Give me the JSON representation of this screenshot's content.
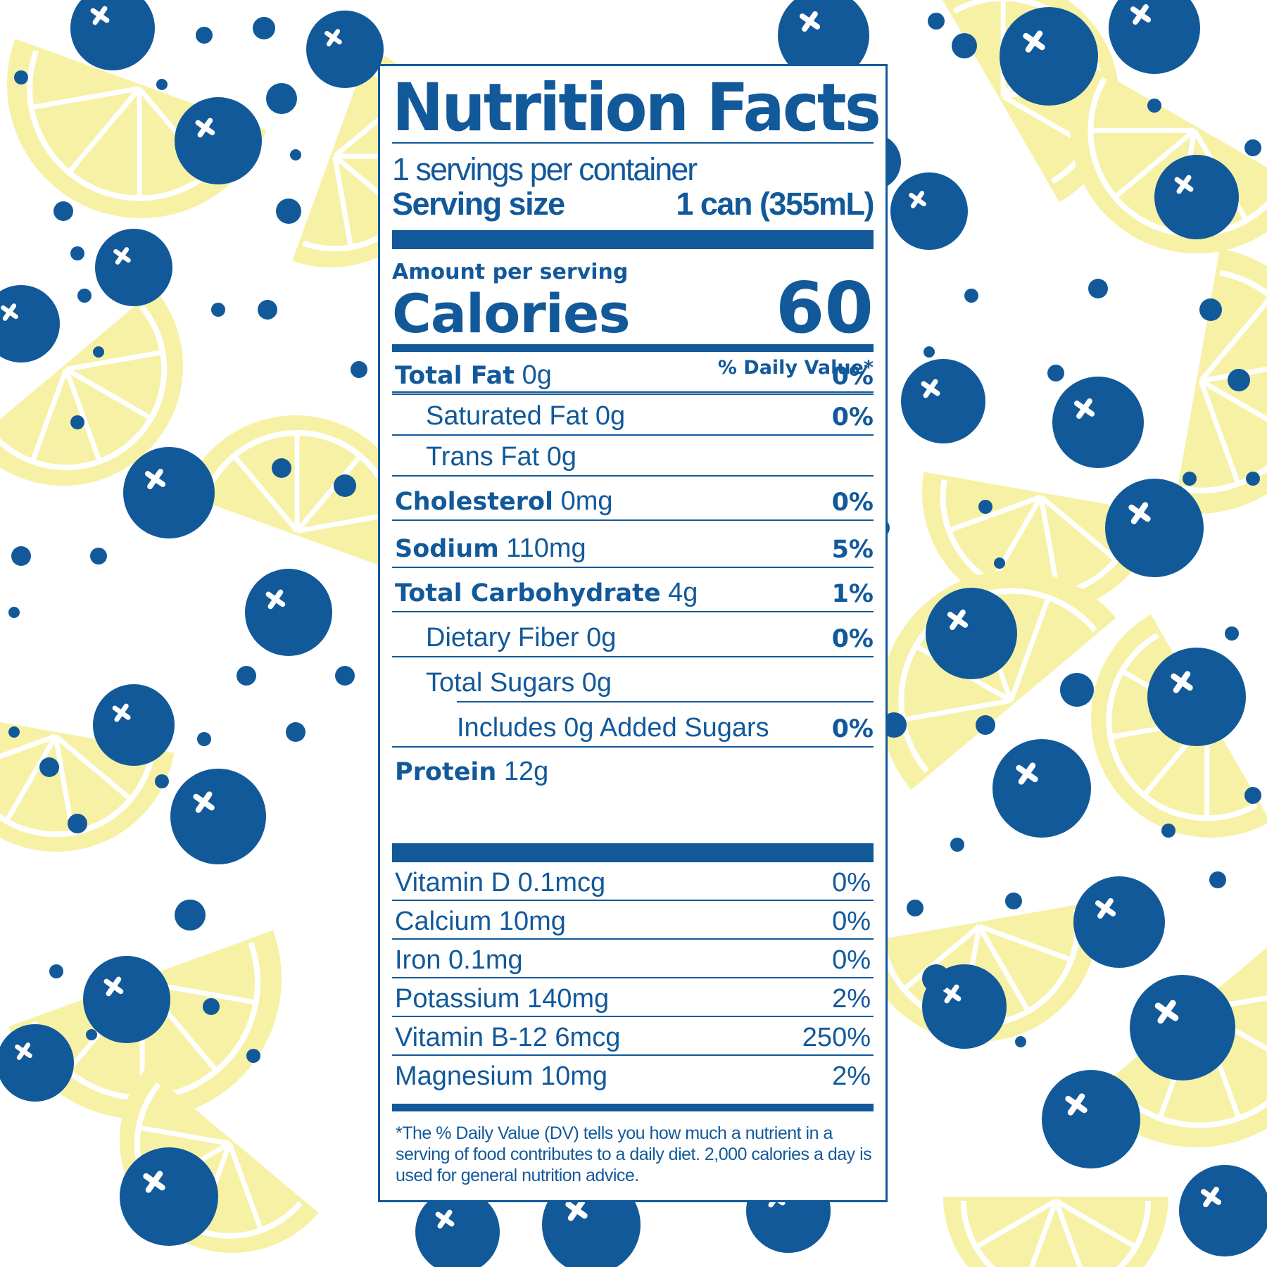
{
  "colors": {
    "blue": "#12599a",
    "lemon": "#f7f1a6",
    "white": "#ffffff"
  },
  "label": {
    "title": "Nutrition Facts",
    "servings_per_container": "1 servings per container",
    "serving_size_label": "Serving size",
    "serving_size_value": "1 can (355mL)",
    "amount_per_serving": "Amount per serving",
    "calories_label": "Calories",
    "calories_value": "60",
    "dv_header": "% Daily Value*",
    "nutrients": [
      {
        "name": "Total Fat",
        "amount": "0g",
        "dv": "0%"
      },
      {
        "name": "Saturated Fat",
        "amount": "0g",
        "dv": "0%"
      },
      {
        "name": "Trans Fat",
        "amount": "0g",
        "dv": ""
      },
      {
        "name": "Cholesterol",
        "amount": "0mg",
        "dv": "0%"
      },
      {
        "name": "Sodium",
        "amount": "110mg",
        "dv": "5%"
      },
      {
        "name": "Total Carbohydrate",
        "amount": "4g",
        "dv": "1%"
      },
      {
        "name": "Dietary Fiber",
        "amount": "0g",
        "dv": "0%"
      },
      {
        "name": "Total Sugars",
        "amount": "0g",
        "dv": ""
      },
      {
        "name": "Includes 0g Added Sugars",
        "amount": "",
        "dv": "0%"
      },
      {
        "name": "Protein",
        "amount": "12g",
        "dv": ""
      }
    ],
    "vitamins": [
      {
        "name": "Vitamin D 0.1mcg",
        "dv": "0%"
      },
      {
        "name": "Calcium 10mg",
        "dv": "0%"
      },
      {
        "name": "Iron 0.1mg",
        "dv": "0%"
      },
      {
        "name": "Potassium 140mg",
        "dv": "2%"
      },
      {
        "name": "Vitamin B-12 6mcg",
        "dv": "250%"
      },
      {
        "name": "Magnesium 10mg",
        "dv": "2%"
      }
    ],
    "footnote": "*The % Daily Value (DV) tells you how much a nutrient in a serving of food contributes to a daily diet. 2,000 calories a day is used for general nutrition advice."
  }
}
